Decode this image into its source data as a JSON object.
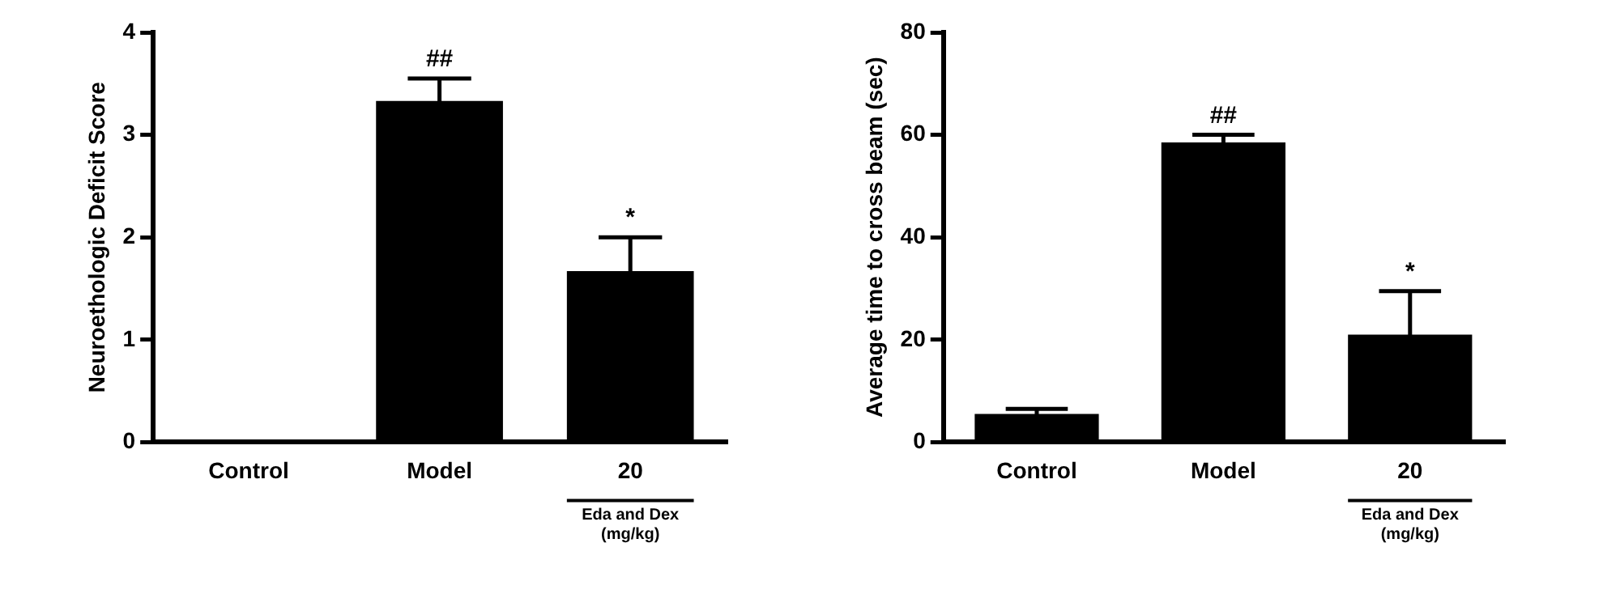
{
  "chart_data": [
    {
      "type": "bar",
      "ylabel": "Neuroethologic Deficit Score",
      "categories": [
        "Control",
        "Model",
        "20"
      ],
      "values": [
        0,
        3.33,
        1.67
      ],
      "errors": [
        null,
        0.22,
        0.33
      ],
      "color": "#000000",
      "ylim": [
        0,
        4
      ],
      "yticks": [
        0,
        1,
        2,
        3,
        4
      ],
      "grid": false,
      "legend": false,
      "annotations": [
        {
          "text": "##",
          "x": "Model",
          "y": 3.55
        },
        {
          "text": "*",
          "x": "20",
          "y": 2.0
        },
        "Eda and Dex\n(mg/kg)"
      ]
    },
    {
      "type": "bar",
      "ylabel": "Average time to cross beam (sec)",
      "categories": [
        "Control",
        "Model",
        "20"
      ],
      "values": [
        5.5,
        58.5,
        21
      ],
      "errors": [
        1,
        1.5,
        8.5
      ],
      "color": "#000000",
      "ylim": [
        0,
        80
      ],
      "yticks": [
        0,
        20,
        40,
        60,
        80
      ],
      "grid": false,
      "legend": false,
      "annotations": [
        {
          "text": "##",
          "x": "Model",
          "y": 60
        },
        {
          "text": "*",
          "x": "20",
          "y": 29.5
        },
        "Eda and Dex\n(mg/kg)"
      ]
    }
  ]
}
